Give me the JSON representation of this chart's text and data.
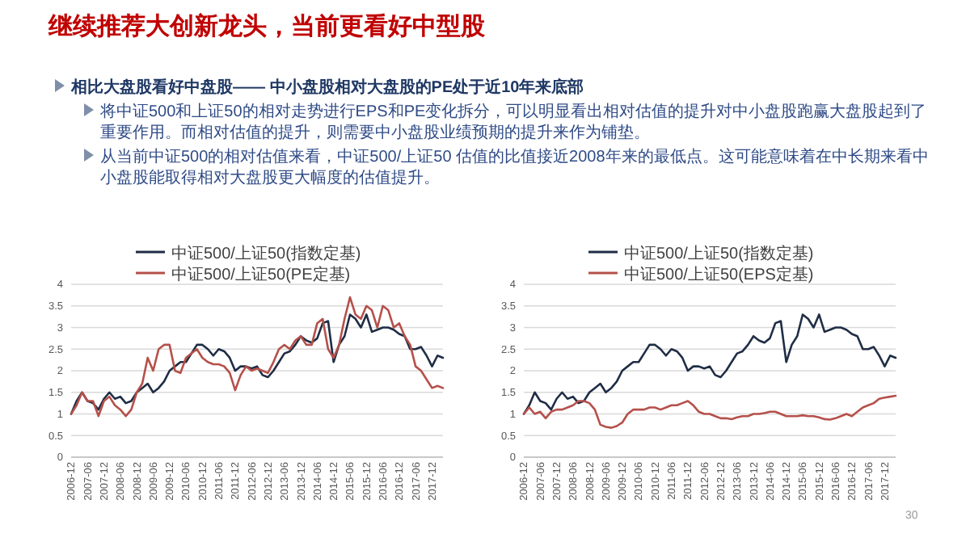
{
  "chart_data": [
    {
      "type": "other",
      "title": "继续推荐大创新龙头，当前更看好中型股",
      "annotations": [
        "相比大盘股看好中盘股—— 中小盘股相对大盘股的PE处于近10年来底部",
        "将中证500和上证50的相对走势进行EPS和PE变化拆分，可以明显看出相对估值的提升对中小盘股跑赢大盘股起到了重要作用。而相对估值的提升，则需要中小盘股业绩预期的提升来作为铺垫。",
        "从当前中证500的相对估值来看，中证500/上证50 估值的比值接近2008年来的最低点。这可能意味着在中长期来看中小盘股能取得相对大盘股更大幅度的估值提升。",
        "30"
      ]
    },
    {
      "type": "line",
      "categories": [
        "2006-12",
        null,
        null,
        "2007-06",
        null,
        null,
        "2007-12",
        null,
        null,
        "2008-06",
        null,
        null,
        "2008-12",
        null,
        null,
        "2009-06",
        null,
        null,
        "2009-12",
        null,
        null,
        "2010-06",
        null,
        null,
        "2010-12",
        null,
        null,
        "2011-06",
        null,
        null,
        "2011-12",
        null,
        null,
        "2012-06",
        null,
        null,
        "2012-12",
        null,
        null,
        "2013-06",
        null,
        null,
        "2013-12",
        null,
        null,
        "2014-06",
        null,
        null,
        "2014-12",
        null,
        null,
        "2015-06",
        null,
        null,
        "2015-12",
        null,
        null,
        "2016-06",
        null,
        null,
        "2016-12",
        null,
        null,
        "2017-06",
        null,
        null,
        "2017-12",
        null,
        null
      ],
      "series": [
        {
          "name": "中证500/上证50(指数定基)",
          "color": "#1f2d45",
          "values": [
            1.0,
            1.3,
            1.5,
            1.3,
            1.25,
            1.1,
            1.35,
            1.5,
            1.35,
            1.4,
            1.25,
            1.3,
            1.5,
            1.6,
            1.7,
            1.5,
            1.6,
            1.75,
            2.0,
            2.1,
            2.2,
            2.2,
            2.4,
            2.6,
            2.6,
            2.5,
            2.35,
            2.5,
            2.45,
            2.3,
            2.0,
            2.1,
            2.1,
            2.05,
            2.1,
            1.9,
            1.85,
            2.0,
            2.2,
            2.4,
            2.45,
            2.6,
            2.8,
            2.7,
            2.65,
            2.75,
            3.1,
            3.15,
            2.2,
            2.6,
            2.8,
            3.3,
            3.2,
            3.0,
            3.3,
            2.9,
            2.95,
            3.0,
            3.0,
            2.95,
            2.85,
            2.8,
            2.5,
            2.5,
            2.55,
            2.35,
            2.1,
            2.35,
            2.3
          ]
        },
        {
          "name": "中证500/上证50(PE定基)",
          "color": "#b5504a",
          "values": [
            1.0,
            1.2,
            1.5,
            1.3,
            1.3,
            0.95,
            1.3,
            1.4,
            1.2,
            1.1,
            0.95,
            1.1,
            1.5,
            1.7,
            2.3,
            2.0,
            2.5,
            2.6,
            2.6,
            2.0,
            1.95,
            2.3,
            2.4,
            2.5,
            2.3,
            2.2,
            2.15,
            2.15,
            2.1,
            1.95,
            1.55,
            1.9,
            2.1,
            2.0,
            2.05,
            2.0,
            1.95,
            2.2,
            2.5,
            2.6,
            2.5,
            2.7,
            2.8,
            2.6,
            2.6,
            3.1,
            3.2,
            2.5,
            2.3,
            2.6,
            3.2,
            3.7,
            3.3,
            3.2,
            3.5,
            3.4,
            3.0,
            3.5,
            3.4,
            3.0,
            3.1,
            2.8,
            2.6,
            2.1,
            2.0,
            1.8,
            1.6,
            1.65,
            1.6
          ]
        }
      ],
      "ylim": [
        0,
        4
      ],
      "yticks": [
        0,
        0.5,
        1,
        1.5,
        2,
        2.5,
        3,
        3.5,
        4
      ],
      "grid": "y",
      "legend": "top"
    },
    {
      "type": "line",
      "categories": [
        "2006-12",
        null,
        null,
        "2007-06",
        null,
        null,
        "2007-12",
        null,
        null,
        "2008-06",
        null,
        null,
        "2008-12",
        null,
        null,
        "2009-06",
        null,
        null,
        "2009-12",
        null,
        null,
        "2010-06",
        null,
        null,
        "2010-12",
        null,
        null,
        "2011-06",
        null,
        null,
        "2011-12",
        null,
        null,
        "2012-06",
        null,
        null,
        "2012-12",
        null,
        null,
        "2013-06",
        null,
        null,
        "2013-12",
        null,
        null,
        "2014-06",
        null,
        null,
        "2014-12",
        null,
        null,
        "2015-06",
        null,
        null,
        "2015-12",
        null,
        null,
        "2016-06",
        null,
        null,
        "2016-12",
        null,
        null,
        "2017-06",
        null,
        null,
        "2017-12",
        null,
        null
      ],
      "series": [
        {
          "name": "中证500/上证50(指数定基)",
          "color": "#1f2d45",
          "values": [
            1.0,
            1.2,
            1.5,
            1.3,
            1.25,
            1.1,
            1.35,
            1.5,
            1.35,
            1.4,
            1.25,
            1.3,
            1.5,
            1.6,
            1.7,
            1.5,
            1.6,
            1.75,
            2.0,
            2.1,
            2.2,
            2.2,
            2.4,
            2.6,
            2.6,
            2.5,
            2.35,
            2.5,
            2.45,
            2.3,
            2.0,
            2.1,
            2.1,
            2.05,
            2.1,
            1.9,
            1.85,
            2.0,
            2.2,
            2.4,
            2.45,
            2.6,
            2.8,
            2.7,
            2.65,
            2.75,
            3.1,
            3.15,
            2.2,
            2.6,
            2.8,
            3.3,
            3.2,
            3.0,
            3.3,
            2.9,
            2.95,
            3.0,
            3.0,
            2.95,
            2.85,
            2.8,
            2.5,
            2.5,
            2.55,
            2.35,
            2.1,
            2.35,
            2.3
          ]
        },
        {
          "name": "中证500/上证50(EPS定基)",
          "color": "#b5504a",
          "values": [
            1.0,
            1.15,
            1.0,
            1.05,
            0.9,
            1.05,
            1.1,
            1.1,
            1.15,
            1.2,
            1.3,
            1.3,
            1.25,
            1.1,
            0.75,
            0.7,
            0.68,
            0.72,
            0.8,
            1.0,
            1.1,
            1.1,
            1.1,
            1.15,
            1.15,
            1.1,
            1.15,
            1.2,
            1.2,
            1.25,
            1.3,
            1.2,
            1.05,
            1.0,
            1.0,
            0.95,
            0.9,
            0.9,
            0.88,
            0.92,
            0.95,
            0.95,
            1.0,
            1.0,
            1.02,
            1.05,
            1.05,
            1.0,
            0.95,
            0.95,
            0.95,
            0.97,
            0.95,
            0.95,
            0.92,
            0.88,
            0.87,
            0.9,
            0.95,
            1.0,
            0.95,
            1.05,
            1.15,
            1.2,
            1.25,
            1.35,
            1.38,
            1.4,
            1.42
          ]
        }
      ],
      "ylim": [
        0,
        4
      ],
      "yticks": [
        0,
        0.5,
        1,
        1.5,
        2,
        2.5,
        3,
        3.5,
        4
      ],
      "grid": "y",
      "legend": "top"
    }
  ]
}
